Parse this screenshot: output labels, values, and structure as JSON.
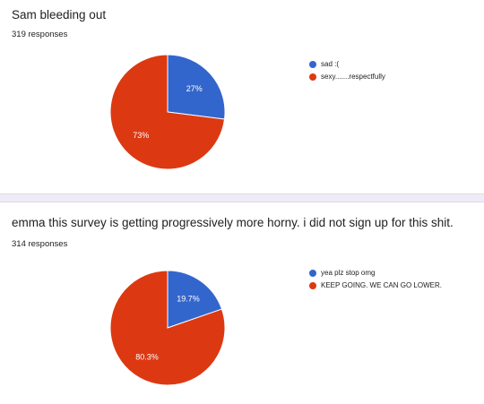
{
  "charts": [
    {
      "question": "Sam bleeding out",
      "responses": "319 responses",
      "chart_data": {
        "type": "pie",
        "title": "Sam bleeding out",
        "categories": [
          "sad :(",
          "sexy.......respectfully"
        ],
        "values": [
          27,
          73
        ],
        "labels": [
          "27%",
          "73%"
        ],
        "colors": [
          "#3366cc",
          "#dc3912"
        ],
        "legend_position": "right"
      }
    },
    {
      "question": "emma this survey is getting progressively more horny. i did not sign up for this shit.",
      "responses": "314 responses",
      "chart_data": {
        "type": "pie",
        "title": "emma this survey is getting progressively more horny. i did not sign up for this shit.",
        "categories": [
          "yea plz stop omg",
          "KEEP GOING. WE CAN GO LOWER."
        ],
        "values": [
          19.7,
          80.3
        ],
        "labels": [
          "19.7%",
          "80.3%"
        ],
        "colors": [
          "#3366cc",
          "#dc3912"
        ],
        "legend_position": "right"
      }
    }
  ],
  "chart_data": [
    {
      "type": "pie",
      "title": "Sam bleeding out",
      "categories": [
        "sad :(",
        "sexy.......respectfully"
      ],
      "values": [
        27,
        73
      ],
      "colors": [
        "#3366cc",
        "#dc3912"
      ]
    },
    {
      "type": "pie",
      "title": "emma this survey is getting progressively more horny. i did not sign up for this shit.",
      "categories": [
        "yea plz stop omg",
        "KEEP GOING. WE CAN GO LOWER."
      ],
      "values": [
        19.7,
        80.3
      ],
      "colors": [
        "#3366cc",
        "#dc3912"
      ]
    }
  ]
}
